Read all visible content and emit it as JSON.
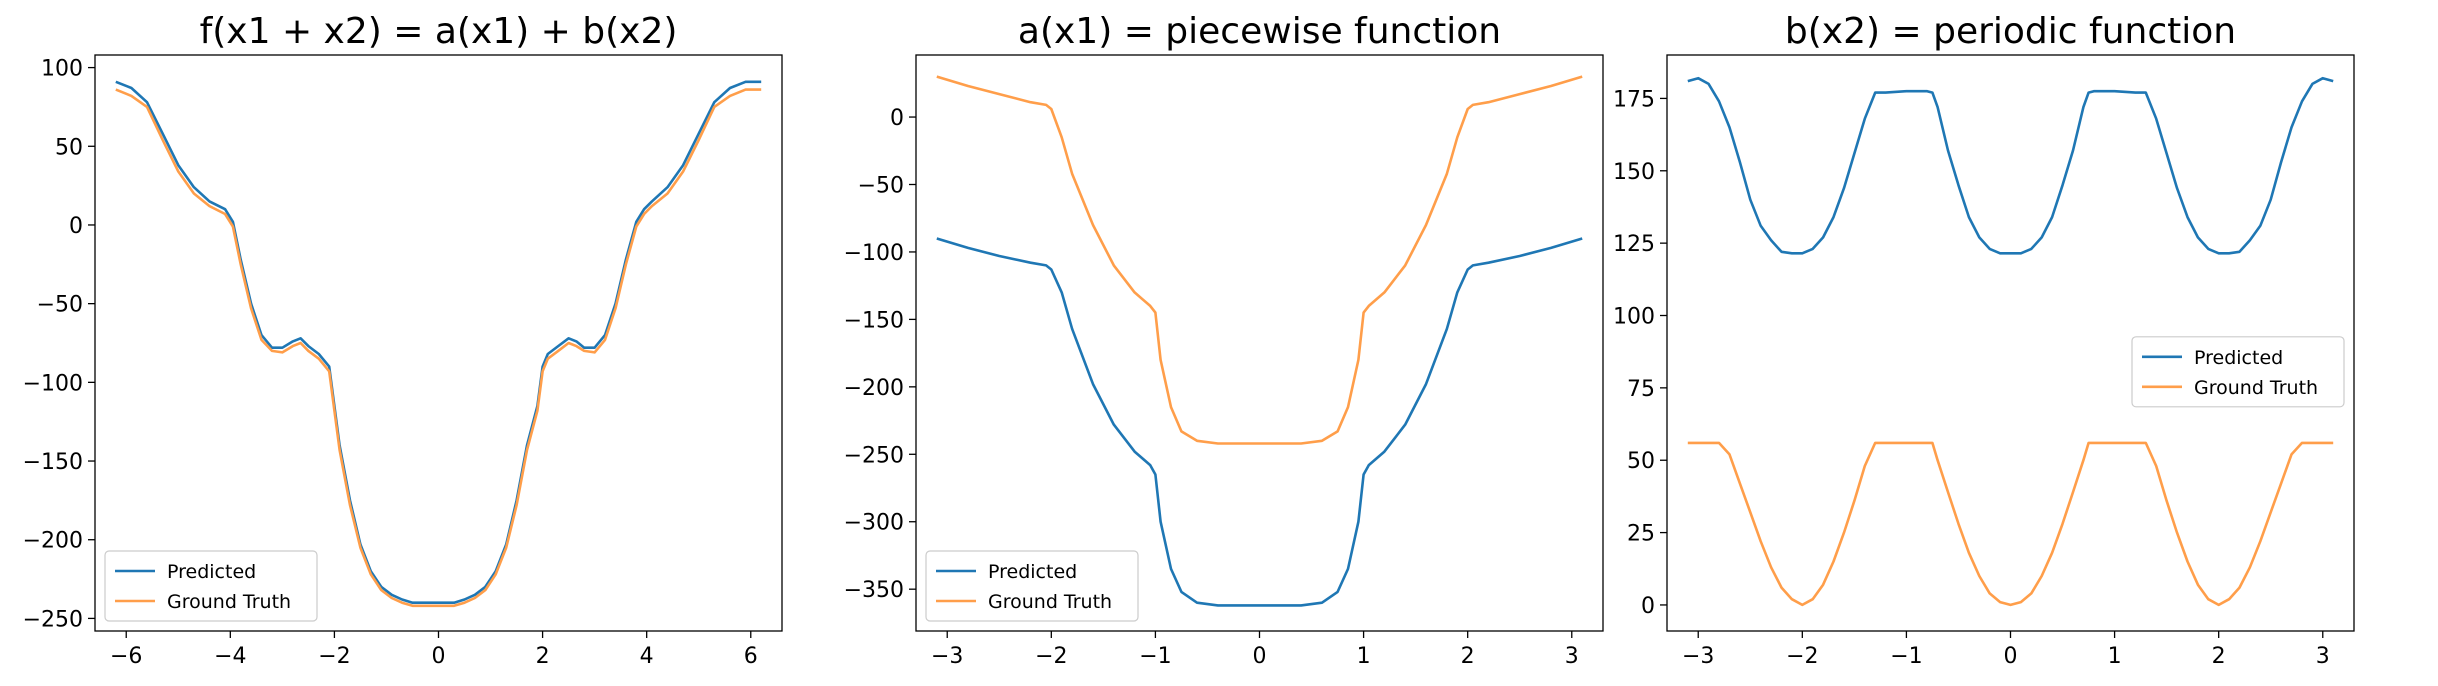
{
  "colors": {
    "predicted": "#1f77b4",
    "ground_truth": "#ff9e4a"
  },
  "chart_data": [
    {
      "type": "line",
      "title": "f(x1 + x2) = a(x1) + b(x2)",
      "xlim": [
        -6.6,
        6.6
      ],
      "ylim": [
        -258,
        108
      ],
      "xticks": [
        -6,
        -4,
        -2,
        0,
        2,
        4,
        6
      ],
      "yticks": [
        -250,
        -200,
        -150,
        -100,
        -50,
        0,
        50,
        100
      ],
      "grid": false,
      "legend": "lower-left",
      "series": [
        {
          "name": "Predicted",
          "color_key": "predicted",
          "x": [
            -6.2,
            -5.9,
            -5.6,
            -5.3,
            -5.0,
            -4.7,
            -4.4,
            -4.1,
            -3.95,
            -3.8,
            -3.6,
            -3.4,
            -3.2,
            -3.0,
            -2.8,
            -2.65,
            -2.5,
            -2.3,
            -2.1,
            -2.0,
            -1.9,
            -1.7,
            -1.5,
            -1.3,
            -1.1,
            -0.9,
            -0.7,
            -0.5,
            -0.3,
            0.0,
            0.3,
            0.5,
            0.7,
            0.9,
            1.1,
            1.3,
            1.5,
            1.7,
            1.9,
            2.0,
            2.1,
            2.3,
            2.5,
            2.65,
            2.8,
            3.0,
            3.2,
            3.4,
            3.6,
            3.8,
            3.95,
            4.1,
            4.4,
            4.7,
            5.0,
            5.3,
            5.6,
            5.9,
            6.2
          ],
          "y": [
            91,
            87,
            78,
            58,
            38,
            24,
            15,
            10,
            2,
            -22,
            -50,
            -70,
            -78,
            -78,
            -74,
            -72,
            -77,
            -82,
            -90,
            -115,
            -140,
            -175,
            -203,
            -220,
            -230,
            -235,
            -238,
            -240,
            -240,
            -240,
            -240,
            -238,
            -235,
            -230,
            -220,
            -203,
            -175,
            -140,
            -115,
            -90,
            -82,
            -77,
            -72,
            -74,
            -78,
            -78,
            -70,
            -50,
            -22,
            2,
            10,
            15,
            24,
            38,
            58,
            78,
            87,
            91,
            91
          ]
        },
        {
          "name": "Ground Truth",
          "color_key": "ground_truth",
          "x": [
            -6.2,
            -5.9,
            -5.6,
            -5.3,
            -5.0,
            -4.7,
            -4.4,
            -4.1,
            -3.95,
            -3.8,
            -3.6,
            -3.4,
            -3.2,
            -3.0,
            -2.8,
            -2.65,
            -2.5,
            -2.3,
            -2.1,
            -2.0,
            -1.9,
            -1.7,
            -1.5,
            -1.3,
            -1.1,
            -0.9,
            -0.7,
            -0.5,
            -0.3,
            0.0,
            0.3,
            0.5,
            0.7,
            0.9,
            1.1,
            1.3,
            1.5,
            1.7,
            1.9,
            2.0,
            2.1,
            2.3,
            2.5,
            2.65,
            2.8,
            3.0,
            3.2,
            3.4,
            3.6,
            3.8,
            3.95,
            4.1,
            4.4,
            4.7,
            5.0,
            5.3,
            5.6,
            5.9,
            6.2
          ],
          "y": [
            86,
            82,
            75,
            54,
            34,
            20,
            12,
            7,
            -1,
            -25,
            -53,
            -73,
            -80,
            -81,
            -77,
            -75,
            -80,
            -85,
            -93,
            -118,
            -143,
            -178,
            -205,
            -222,
            -232,
            -237,
            -240,
            -242,
            -242,
            -242,
            -242,
            -240,
            -237,
            -232,
            -222,
            -205,
            -178,
            -143,
            -118,
            -93,
            -85,
            -80,
            -75,
            -77,
            -80,
            -81,
            -73,
            -53,
            -25,
            -1,
            7,
            12,
            20,
            34,
            54,
            75,
            82,
            86,
            86
          ]
        }
      ]
    },
    {
      "type": "line",
      "title": "a(x1) = piecewise function",
      "xlim": [
        -3.3,
        3.3
      ],
      "ylim": [
        -381,
        46
      ],
      "xticks": [
        -3,
        -2,
        -1,
        0,
        1,
        2,
        3
      ],
      "yticks": [
        -350,
        -300,
        -250,
        -200,
        -150,
        -100,
        -50,
        0
      ],
      "grid": false,
      "legend": "lower-left",
      "series": [
        {
          "name": "Predicted",
          "color_key": "predicted",
          "x": [
            -3.1,
            -2.8,
            -2.5,
            -2.2,
            -2.05,
            -2.0,
            -1.9,
            -1.8,
            -1.6,
            -1.4,
            -1.2,
            -1.05,
            -1.0,
            -0.95,
            -0.85,
            -0.75,
            -0.6,
            -0.4,
            -0.2,
            0.0,
            0.2,
            0.4,
            0.6,
            0.75,
            0.85,
            0.95,
            1.0,
            1.05,
            1.2,
            1.4,
            1.6,
            1.8,
            1.9,
            2.0,
            2.05,
            2.2,
            2.5,
            2.8,
            3.1
          ],
          "y": [
            -90,
            -97,
            -103,
            -108,
            -110,
            -113,
            -130,
            -157,
            -198,
            -228,
            -248,
            -258,
            -265,
            -300,
            -335,
            -352,
            -360,
            -362,
            -362,
            -362,
            -362,
            -362,
            -360,
            -352,
            -335,
            -300,
            -265,
            -258,
            -248,
            -228,
            -198,
            -157,
            -130,
            -113,
            -110,
            -108,
            -103,
            -97,
            -90
          ]
        },
        {
          "name": "Ground Truth",
          "color_key": "ground_truth",
          "x": [
            -3.1,
            -2.8,
            -2.5,
            -2.2,
            -2.05,
            -2.0,
            -1.9,
            -1.8,
            -1.6,
            -1.4,
            -1.2,
            -1.05,
            -1.0,
            -0.95,
            -0.85,
            -0.75,
            -0.6,
            -0.4,
            -0.2,
            0.0,
            0.2,
            0.4,
            0.6,
            0.75,
            0.85,
            0.95,
            1.0,
            1.05,
            1.2,
            1.4,
            1.6,
            1.8,
            1.9,
            2.0,
            2.05,
            2.2,
            2.5,
            2.8,
            3.1
          ],
          "y": [
            30,
            23,
            17,
            11,
            9,
            6,
            -15,
            -42,
            -80,
            -110,
            -130,
            -140,
            -145,
            -180,
            -215,
            -233,
            -240,
            -242,
            -242,
            -242,
            -242,
            -242,
            -240,
            -233,
            -215,
            -180,
            -145,
            -140,
            -130,
            -110,
            -80,
            -42,
            -15,
            6,
            9,
            11,
            17,
            23,
            30
          ]
        }
      ]
    },
    {
      "type": "line",
      "title": "b(x2) = periodic function",
      "xlim": [
        -3.3,
        3.3
      ],
      "ylim": [
        -9,
        190
      ],
      "xticks": [
        -3,
        -2,
        -1,
        0,
        1,
        2,
        3
      ],
      "yticks": [
        0,
        25,
        50,
        75,
        100,
        125,
        150,
        175
      ],
      "grid": false,
      "legend": "center-right",
      "series": [
        {
          "name": "Predicted",
          "color_key": "predicted",
          "x": [
            -3.1,
            -3.0,
            -2.9,
            -2.8,
            -2.7,
            -2.6,
            -2.5,
            -2.4,
            -2.3,
            -2.2,
            -2.1,
            -2.0,
            -1.9,
            -1.8,
            -1.7,
            -1.6,
            -1.5,
            -1.4,
            -1.3,
            -1.2,
            -1.0,
            -0.8,
            -0.75,
            -0.7,
            -0.6,
            -0.5,
            -0.4,
            -0.3,
            -0.2,
            -0.1,
            0.0,
            0.1,
            0.2,
            0.3,
            0.4,
            0.5,
            0.6,
            0.7,
            0.75,
            0.8,
            1.0,
            1.2,
            1.3,
            1.4,
            1.5,
            1.6,
            1.7,
            1.8,
            1.9,
            2.0,
            2.1,
            2.2,
            2.3,
            2.4,
            2.5,
            2.6,
            2.7,
            2.8,
            2.9,
            3.0,
            3.1
          ],
          "y": [
            181,
            182,
            180,
            174,
            165,
            153,
            140,
            131,
            126,
            122,
            121.5,
            121.5,
            123,
            127,
            134,
            144,
            156,
            168,
            177,
            177,
            177.5,
            177.5,
            177,
            172,
            157,
            145,
            134,
            127,
            123,
            121.5,
            121.5,
            121.5,
            123,
            127,
            134,
            145,
            157,
            172,
            177,
            177.5,
            177.5,
            177,
            177,
            168,
            156,
            144,
            134,
            127,
            123,
            121.5,
            121.5,
            122,
            126,
            131,
            140,
            153,
            165,
            174,
            180,
            182,
            181
          ]
        },
        {
          "name": "Ground Truth",
          "color_key": "ground_truth",
          "x": [
            -3.1,
            -3.0,
            -2.9,
            -2.8,
            -2.7,
            -2.6,
            -2.5,
            -2.4,
            -2.3,
            -2.2,
            -2.1,
            -2.0,
            -1.9,
            -1.8,
            -1.7,
            -1.6,
            -1.5,
            -1.4,
            -1.3,
            -1.2,
            -1.0,
            -0.8,
            -0.75,
            -0.7,
            -0.6,
            -0.5,
            -0.4,
            -0.3,
            -0.2,
            -0.1,
            0.0,
            0.1,
            0.2,
            0.3,
            0.4,
            0.5,
            0.6,
            0.7,
            0.75,
            0.8,
            1.0,
            1.2,
            1.3,
            1.4,
            1.5,
            1.6,
            1.7,
            1.8,
            1.9,
            2.0,
            2.1,
            2.2,
            2.3,
            2.4,
            2.5,
            2.6,
            2.7,
            2.8,
            2.9,
            3.0,
            3.1
          ],
          "y": [
            56,
            56,
            56,
            56,
            52,
            42,
            32,
            22,
            13,
            6,
            2,
            0,
            2,
            7,
            15,
            25,
            36,
            48,
            56,
            56,
            56,
            56,
            56,
            50,
            39,
            28,
            18,
            10,
            4,
            1,
            0,
            1,
            4,
            10,
            18,
            28,
            39,
            50,
            56,
            56,
            56,
            56,
            56,
            48,
            36,
            25,
            15,
            7,
            2,
            0,
            2,
            6,
            13,
            22,
            32,
            42,
            52,
            56,
            56,
            56,
            56
          ]
        }
      ]
    }
  ]
}
